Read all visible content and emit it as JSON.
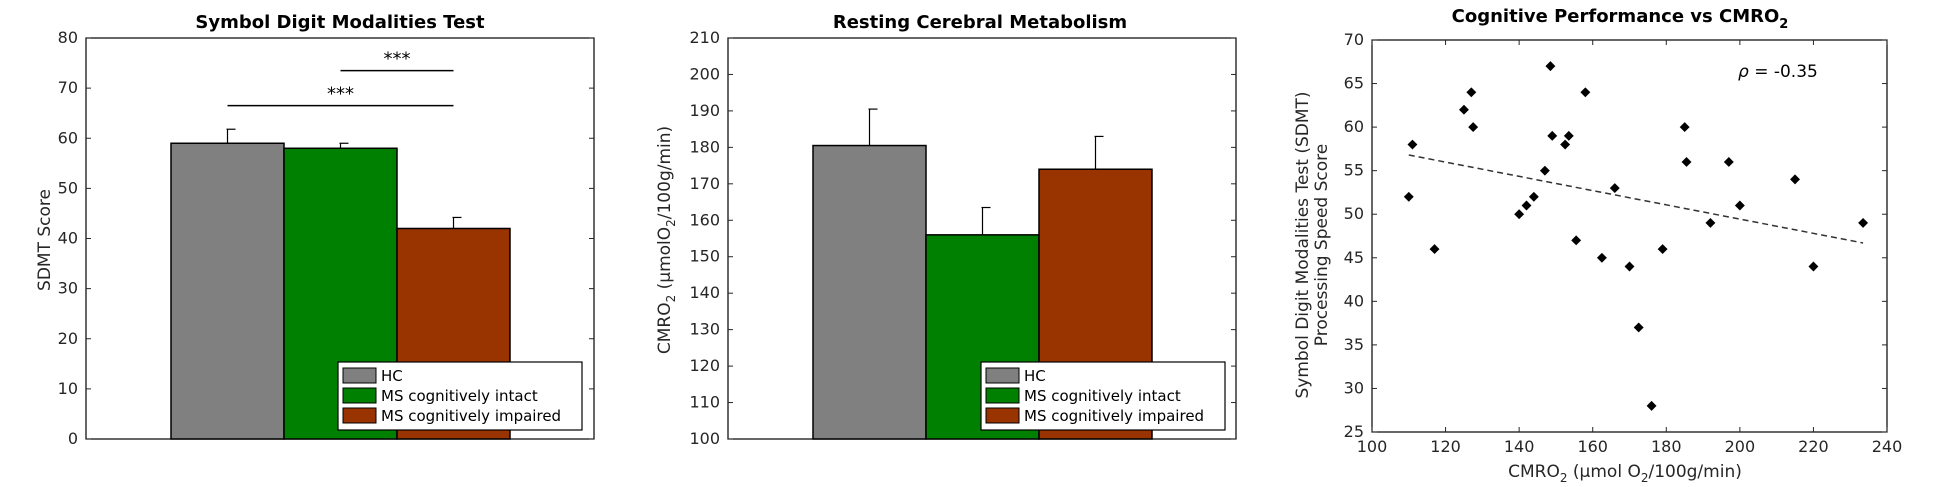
{
  "chart_data": [
    {
      "type": "bar",
      "title": "Symbol Digit Modalities Test",
      "xlabel": "",
      "ylabel": "SDMT Score",
      "ylim": [
        0,
        80
      ],
      "yticks": [
        0,
        10,
        20,
        30,
        40,
        50,
        60,
        70,
        80
      ],
      "categories": [
        "HC",
        "MS cognitively intact",
        "MS cognitively impaired"
      ],
      "values": [
        59,
        58,
        42
      ],
      "errors": [
        2.8,
        1.0,
        2.2
      ],
      "colors": [
        "#808080",
        "#008000",
        "#993300"
      ],
      "legend_position": "bottom-right",
      "significance": [
        {
          "label": "***",
          "from": 1,
          "to": 2,
          "y": 73.5
        },
        {
          "label": "***",
          "from": 0,
          "to": 2,
          "y": 66.5
        }
      ]
    },
    {
      "type": "bar",
      "title": "Resting Cerebral Metabolism",
      "xlabel": "",
      "ylabel": "CMRO",
      "ylabel_sub": "2",
      "ylabel_rest": " (μmolO",
      "ylabel_sub2": "2",
      "ylabel_end": "/100g/min)",
      "ylim": [
        100,
        210
      ],
      "yticks": [
        100,
        110,
        120,
        130,
        140,
        150,
        160,
        170,
        180,
        190,
        200,
        210
      ],
      "categories": [
        "HC",
        "MS cognitively intact",
        "MS cognitively impaired"
      ],
      "values": [
        180.5,
        156,
        174
      ],
      "errors": [
        10,
        7.5,
        9
      ],
      "colors": [
        "#808080",
        "#008000",
        "#993300"
      ],
      "legend_position": "bottom-right"
    },
    {
      "type": "scatter",
      "title": "Cognitive Performance vs CMRO",
      "title_sub": "2",
      "xlabel": "CMRO",
      "xlabel_sub": "2",
      "xlabel_rest": " (μmol O",
      "xlabel_sub2": "2",
      "xlabel_end": "/100g/min)",
      "ylabel_line1": "Symbol Digit Modalities Test (SDMT)",
      "ylabel_line2": "Processing Speed Score",
      "xlim": [
        100,
        240
      ],
      "ylim": [
        25,
        70
      ],
      "xticks": [
        100,
        120,
        140,
        160,
        180,
        200,
        220,
        240
      ],
      "yticks": [
        25,
        30,
        35,
        40,
        45,
        50,
        55,
        60,
        65,
        70
      ],
      "points": [
        {
          "x": 110,
          "y": 52
        },
        {
          "x": 111,
          "y": 58
        },
        {
          "x": 117,
          "y": 46
        },
        {
          "x": 125,
          "y": 62
        },
        {
          "x": 127,
          "y": 64
        },
        {
          "x": 127.5,
          "y": 60
        },
        {
          "x": 140,
          "y": 50
        },
        {
          "x": 142,
          "y": 51
        },
        {
          "x": 144,
          "y": 52
        },
        {
          "x": 147,
          "y": 55
        },
        {
          "x": 148.5,
          "y": 67
        },
        {
          "x": 149,
          "y": 59
        },
        {
          "x": 152.5,
          "y": 58
        },
        {
          "x": 153.5,
          "y": 59
        },
        {
          "x": 155.5,
          "y": 47
        },
        {
          "x": 158,
          "y": 64
        },
        {
          "x": 162.5,
          "y": 45
        },
        {
          "x": 166,
          "y": 53
        },
        {
          "x": 170,
          "y": 44
        },
        {
          "x": 172.5,
          "y": 37
        },
        {
          "x": 176,
          "y": 28
        },
        {
          "x": 179,
          "y": 46
        },
        {
          "x": 185,
          "y": 60
        },
        {
          "x": 185.5,
          "y": 56
        },
        {
          "x": 192,
          "y": 49
        },
        {
          "x": 197,
          "y": 56
        },
        {
          "x": 200,
          "y": 51
        },
        {
          "x": 215,
          "y": 54
        },
        {
          "x": 220,
          "y": 44
        },
        {
          "x": 233.5,
          "y": 49
        }
      ],
      "trendline": {
        "x": [
          110,
          233.5
        ],
        "y": [
          56.8,
          46.7
        ]
      },
      "annotation_symbol": "ρ",
      "annotation_value": " = -0.35"
    }
  ]
}
